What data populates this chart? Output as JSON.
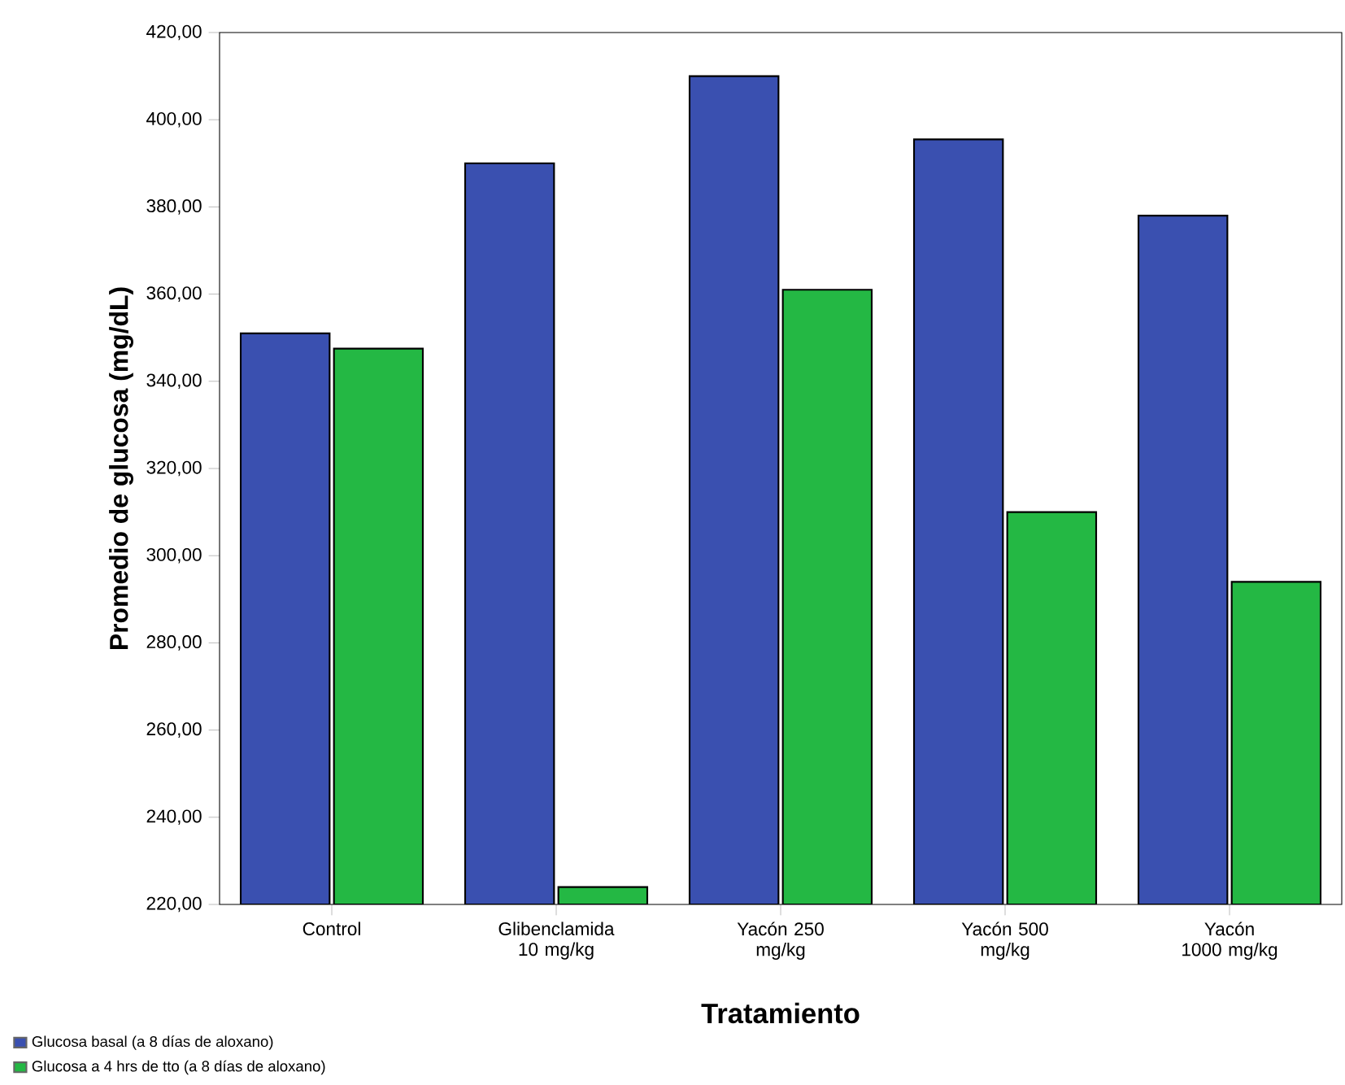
{
  "chart_data": {
    "type": "bar",
    "xlabel": "Tratamiento",
    "ylabel": "Promedio de glucosa (mg/dL)",
    "categories": [
      "Control",
      "Glibenclamida 10 mg/kg",
      "Yacón 250 mg/kg",
      "Yacón 500 mg/kg",
      "Yacón 1000 mg/kg"
    ],
    "series": [
      {
        "name": "Glucosa basal (a 8 días de aloxano)",
        "color": "#3a50b0",
        "values": [
          351,
          390,
          410,
          395.5,
          378
        ]
      },
      {
        "name": "Glucosa a 4 hrs de tto (a 8 días de aloxano)",
        "color": "#24b844",
        "values": [
          347.5,
          224,
          361,
          310,
          294
        ]
      }
    ],
    "ylim": [
      220,
      420
    ],
    "yticks": [
      {
        "value": 220,
        "label": "220,00"
      },
      {
        "value": 240,
        "label": "240,00"
      },
      {
        "value": 260,
        "label": "260,00"
      },
      {
        "value": 280,
        "label": "280,00"
      },
      {
        "value": 300,
        "label": "300,00"
      },
      {
        "value": 320,
        "label": "320,00"
      },
      {
        "value": 340,
        "label": "340,00"
      },
      {
        "value": 360,
        "label": "360,00"
      },
      {
        "value": 380,
        "label": "380,00"
      },
      {
        "value": 400,
        "label": "400,00"
      },
      {
        "value": 420,
        "label": "420,00"
      }
    ],
    "legend": "bottom left"
  }
}
